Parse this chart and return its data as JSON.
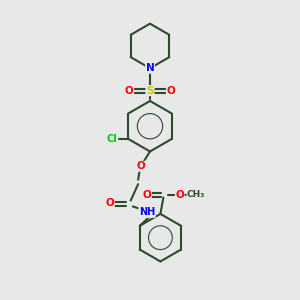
{
  "background_color": "#e8e8e8",
  "bond_color": "#2d4a2d",
  "bond_width": 1.5,
  "atom_colors": {
    "N": "#0000ff",
    "O": "#ff0000",
    "S": "#cccc00",
    "Cl": "#00cc00",
    "C": "#2d4a2d",
    "H": "#888888"
  },
  "figsize": [
    3.0,
    3.0
  ],
  "dpi": 100
}
